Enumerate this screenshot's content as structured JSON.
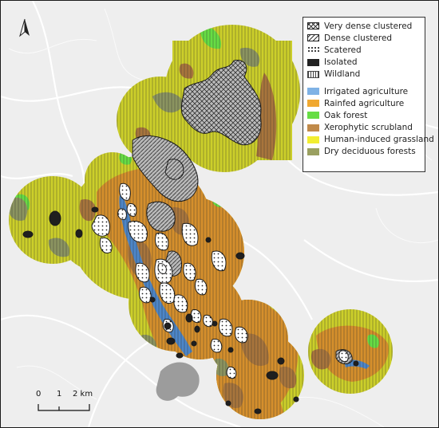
{
  "legend": {
    "settlement": [
      {
        "label": "Very dense clustered",
        "swatch": "crosshatch"
      },
      {
        "label": "Dense clustered",
        "swatch": "diagonal"
      },
      {
        "label": "Scatered",
        "swatch": "dots"
      },
      {
        "label": "Isolated",
        "swatch": "solid-black"
      },
      {
        "label": "Wildland",
        "swatch": "vertical-lines"
      }
    ],
    "landcover": [
      {
        "label": "Irrigated agriculture",
        "color": "#7fb2e5"
      },
      {
        "label": "Rainfed agriculture",
        "color": "#f0a830"
      },
      {
        "label": "Oak forest",
        "color": "#66dd44"
      },
      {
        "label": "Xerophytic scrubland",
        "color": "#c08a4a"
      },
      {
        "label": "Human-induced grassland",
        "color": "#f2ee30"
      },
      {
        "label": "Dry deciduous forests",
        "color": "#9aa060"
      }
    ]
  },
  "north_arrow": {
    "label": "A",
    "icon": "north-arrow-icon"
  },
  "scale_bar": {
    "labels": [
      "0",
      "1",
      "2 km"
    ]
  },
  "colors": {
    "basemap": "#eeeeee",
    "roads": "#ffffff",
    "grassland": "#dada2a",
    "rainfed": "#d58f2c",
    "scrub": "#a8753c",
    "oak": "#66dd44",
    "deciduous": "#8b9460",
    "irrigated": "#4d86c8",
    "water": "#9c9c9c",
    "settlement": "#b5b5b5"
  }
}
